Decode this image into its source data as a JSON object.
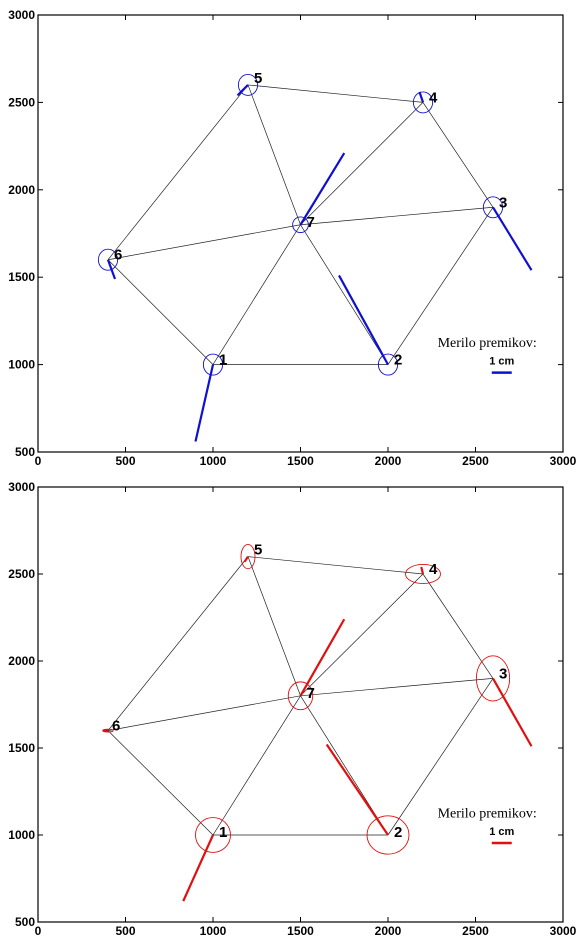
{
  "chart_data": [
    {
      "type": "scatter",
      "xlim": [
        0,
        3000
      ],
      "ylim": [
        500,
        3000
      ],
      "x_ticks": [
        0,
        500,
        1000,
        1500,
        2000,
        2500,
        3000
      ],
      "y_ticks": [
        500,
        1000,
        1500,
        2000,
        2500,
        3000
      ],
      "accent_color": "#1010d0",
      "points": [
        {
          "label": "1",
          "x": 1000,
          "y": 1000
        },
        {
          "label": "2",
          "x": 2000,
          "y": 1000
        },
        {
          "label": "3",
          "x": 2600,
          "y": 1900
        },
        {
          "label": "4",
          "x": 2200,
          "y": 2500
        },
        {
          "label": "5",
          "x": 1200,
          "y": 2600
        },
        {
          "label": "6",
          "x": 400,
          "y": 1600
        },
        {
          "label": "7",
          "x": 1500,
          "y": 1800
        }
      ],
      "edges": [
        [
          1,
          2
        ],
        [
          2,
          3
        ],
        [
          3,
          4
        ],
        [
          4,
          5
        ],
        [
          5,
          6
        ],
        [
          6,
          1
        ],
        [
          7,
          1
        ],
        [
          7,
          2
        ],
        [
          7,
          3
        ],
        [
          7,
          4
        ],
        [
          7,
          5
        ],
        [
          7,
          6
        ]
      ],
      "ellipses": [
        {
          "point": "1",
          "rx": 55,
          "ry": 60
        },
        {
          "point": "2",
          "rx": 55,
          "ry": 60
        },
        {
          "point": "3",
          "rx": 55,
          "ry": 60
        },
        {
          "point": "4",
          "rx": 55,
          "ry": 60
        },
        {
          "point": "5",
          "rx": 55,
          "ry": 60
        },
        {
          "point": "6",
          "rx": 55,
          "ry": 60
        },
        {
          "point": "7",
          "rx": 45,
          "ry": 45
        }
      ],
      "displacements": [
        {
          "point": "1",
          "x2": 900,
          "y2": 560
        },
        {
          "point": "2",
          "x2": 1720,
          "y2": 1510
        },
        {
          "point": "3",
          "x2": 2820,
          "y2": 1540
        },
        {
          "point": "4",
          "x2": 2180,
          "y2": 2560
        },
        {
          "point": "5",
          "x2": 1140,
          "y2": 2540
        },
        {
          "point": "6",
          "x2": 440,
          "y2": 1490
        },
        {
          "point": "7",
          "x2": 1750,
          "y2": 2210
        }
      ],
      "scale_legend": {
        "title": "Merilo premikov:",
        "unit": "1 cm"
      }
    },
    {
      "type": "scatter",
      "xlim": [
        0,
        3000
      ],
      "ylim": [
        500,
        3000
      ],
      "x_ticks": [
        0,
        500,
        1000,
        1500,
        2000,
        2500,
        3000
      ],
      "y_ticks": [
        500,
        1000,
        1500,
        2000,
        2500,
        3000
      ],
      "accent_color": "#e01010",
      "points": [
        {
          "label": "1",
          "x": 1000,
          "y": 1000
        },
        {
          "label": "2",
          "x": 2000,
          "y": 1000
        },
        {
          "label": "3",
          "x": 2600,
          "y": 1900
        },
        {
          "label": "4",
          "x": 2200,
          "y": 2500
        },
        {
          "label": "5",
          "x": 1200,
          "y": 2600
        },
        {
          "label": "6",
          "x": 400,
          "y": 1600
        },
        {
          "label": "7",
          "x": 1500,
          "y": 1800
        }
      ],
      "edges": [
        [
          1,
          2
        ],
        [
          2,
          3
        ],
        [
          3,
          4
        ],
        [
          4,
          5
        ],
        [
          5,
          6
        ],
        [
          6,
          1
        ],
        [
          7,
          1
        ],
        [
          7,
          2
        ],
        [
          7,
          3
        ],
        [
          7,
          4
        ],
        [
          7,
          5
        ],
        [
          7,
          6
        ]
      ],
      "ellipses": [
        {
          "point": "1",
          "rx": 100,
          "ry": 100
        },
        {
          "point": "2",
          "rx": 120,
          "ry": 110
        },
        {
          "point": "3",
          "rx": 95,
          "ry": 130
        },
        {
          "point": "4",
          "rx": 100,
          "ry": 55
        },
        {
          "point": "5",
          "rx": 40,
          "ry": 70
        },
        {
          "point": "6",
          "rx": 30,
          "ry": 8
        },
        {
          "point": "7",
          "rx": 70,
          "ry": 80
        }
      ],
      "displacements": [
        {
          "point": "1",
          "x2": 830,
          "y2": 620
        },
        {
          "point": "2",
          "x2": 1650,
          "y2": 1520
        },
        {
          "point": "3",
          "x2": 2820,
          "y2": 1510
        },
        {
          "point": "4",
          "x2": 2190,
          "y2": 2540
        },
        {
          "point": "5",
          "x2": 1180,
          "y2": 2570
        },
        {
          "point": "6",
          "x2": 370,
          "y2": 1600
        },
        {
          "point": "7",
          "x2": 1750,
          "y2": 2240
        }
      ],
      "scale_legend": {
        "title": "Merilo premikov:",
        "unit": "1 cm"
      }
    }
  ]
}
